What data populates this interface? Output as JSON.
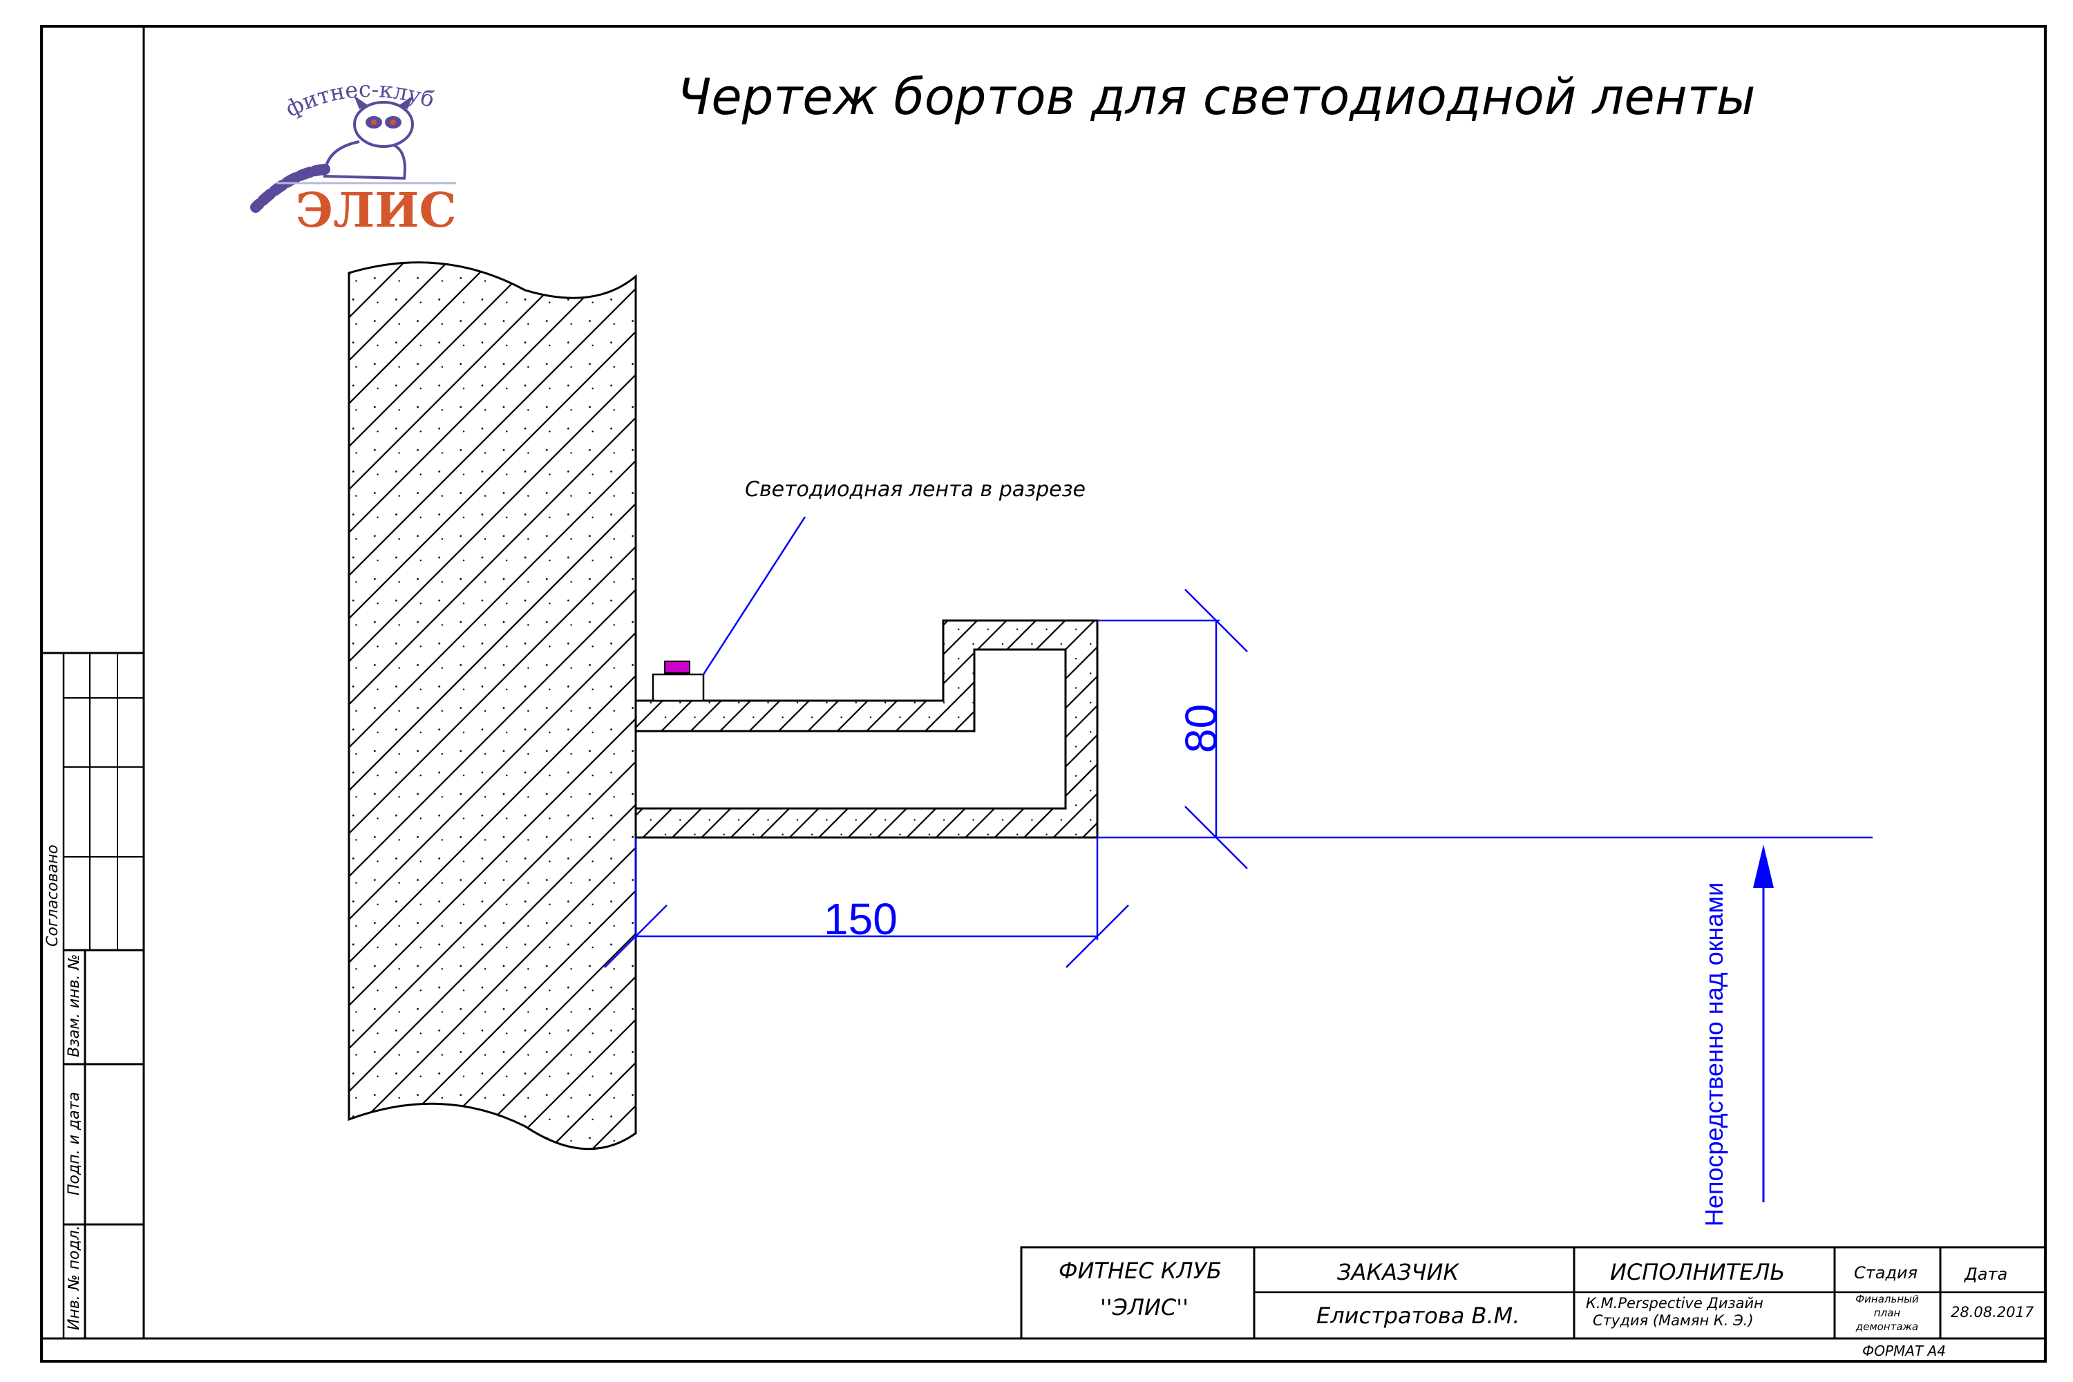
{
  "title": "Чертеж бортов для светодиодной ленты",
  "logo": {
    "arc_text": "фитнес-клуб",
    "name": "ЭЛИС"
  },
  "labels": {
    "led_note": "Светодиодная лента в разрезе",
    "vertical_note": "Непосредственно над окнами"
  },
  "dimensions": {
    "height": "80",
    "width": "150"
  },
  "side_stamp": {
    "agreed": "Согласовано",
    "interchange": "Взам. инв. №",
    "signature_date": "Подп. и дата",
    "inventory": "Инв. № подл."
  },
  "title_block": {
    "club_line1": "ФИТНЕС КЛУБ",
    "club_line2": "''ЭЛИС''",
    "customer_header": "ЗАКАЗЧИК",
    "customer_name": "Елистратова В.М.",
    "contractor_header": "ИСПОЛНИТЕЛЬ",
    "contractor_line1": "К.М.Perspective Дизайн",
    "contractor_line2": "Студия (Мамян К. Э.)",
    "stage_header": "Стадия",
    "stage_line1": "Финальный",
    "stage_line2": "план",
    "stage_line3": "демонтажа",
    "date_header": "Дата",
    "date_value": "28.08.2017",
    "format": "ФОРМАТ А4"
  },
  "colors": {
    "dimension": "#0000ff",
    "led_fill": "#cc00cc",
    "logo_text": "#d4562c",
    "logo_purple": "#5b4a9a"
  }
}
